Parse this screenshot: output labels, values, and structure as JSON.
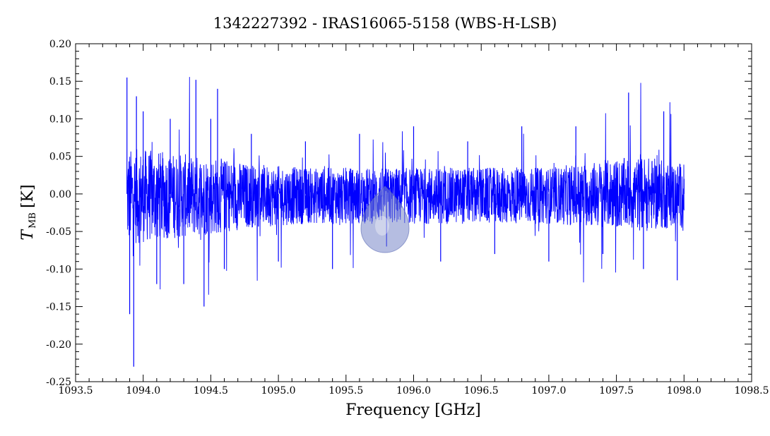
{
  "chart_data": {
    "type": "line",
    "title": "1342227392 - IRAS16065-5158 (WBS-H-LSB)",
    "xlabel": "Frequency [GHz]",
    "ylabel_main": "T",
    "ylabel_sub": "MB",
    "ylabel_unit": "[K]",
    "xlim": [
      1093.5,
      1098.5
    ],
    "ylim": [
      -0.25,
      0.2
    ],
    "x_ticks": [
      "1093.5",
      "1094.0",
      "1094.5",
      "1095.0",
      "1095.5",
      "1096.0",
      "1096.5",
      "1097.0",
      "1097.5",
      "1098.0",
      "1098.5"
    ],
    "x_tick_values": [
      1093.5,
      1094.0,
      1094.5,
      1095.0,
      1095.5,
      1096.0,
      1096.5,
      1097.0,
      1097.5,
      1098.0,
      1098.5
    ],
    "y_ticks": [
      "0.20",
      "0.15",
      "0.10",
      "0.05",
      "0.00",
      "-0.05",
      "-0.10",
      "-0.15",
      "-0.20",
      "-0.25"
    ],
    "y_tick_values": [
      0.2,
      0.15,
      0.1,
      0.05,
      0.0,
      -0.05,
      -0.1,
      -0.15,
      -0.2,
      -0.25
    ],
    "grid": false,
    "line_color": "#0000ff",
    "series": [
      {
        "x_start": 1093.88,
        "x_end": 1098.0,
        "x": [
          1093.88,
          1093.9,
          1093.93,
          1093.95,
          1094.0,
          1094.1,
          1094.2,
          1094.3,
          1094.39,
          1094.45,
          1094.5,
          1094.55,
          1094.6,
          1094.8,
          1095.0,
          1095.2,
          1095.4,
          1095.6,
          1095.8,
          1096.0,
          1096.2,
          1096.4,
          1096.6,
          1096.8,
          1097.0,
          1097.2,
          1097.4,
          1097.59,
          1097.7,
          1097.85,
          1097.95,
          1098.0
        ],
        "y": [
          0.155,
          -0.16,
          -0.23,
          0.13,
          0.11,
          -0.12,
          0.1,
          -0.12,
          0.152,
          -0.15,
          0.1,
          0.14,
          -0.1,
          0.08,
          -0.09,
          0.07,
          -0.1,
          0.08,
          -0.07,
          0.09,
          -0.09,
          0.07,
          -0.08,
          0.09,
          -0.09,
          0.09,
          -0.08,
          0.135,
          -0.1,
          0.11,
          -0.115,
          0.02
        ],
        "envelope": {
          "x": [
            1093.88,
            1094.0,
            1094.2,
            1094.5,
            1094.8,
            1095.2,
            1095.8,
            1096.4,
            1097.0,
            1097.4,
            1097.7,
            1098.0
          ],
          "upper": [
            0.06,
            0.06,
            0.055,
            0.05,
            0.04,
            0.035,
            0.035,
            0.035,
            0.035,
            0.045,
            0.05,
            0.04
          ],
          "lower": [
            -0.07,
            -0.065,
            -0.06,
            -0.055,
            -0.045,
            -0.04,
            -0.04,
            -0.04,
            -0.04,
            -0.045,
            -0.05,
            -0.045
          ]
        }
      }
    ]
  }
}
